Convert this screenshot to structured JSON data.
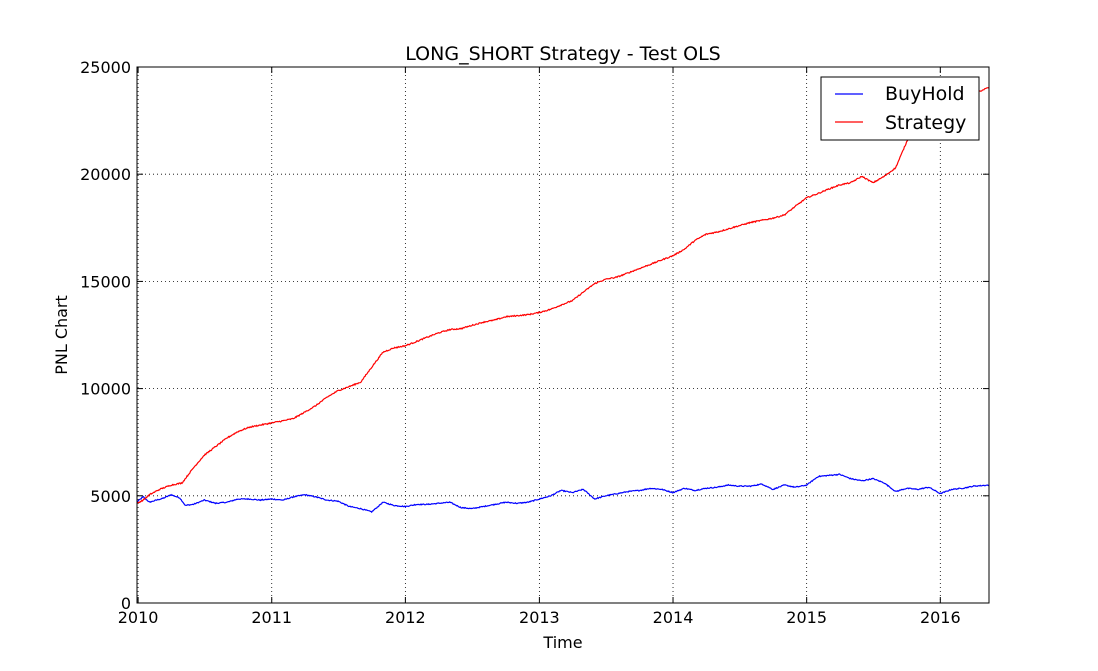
{
  "chart_data": {
    "type": "line",
    "title": "LONG_SHORT Strategy - Test OLS",
    "xlabel": "Time",
    "ylabel": "PNL Chart",
    "xlim": [
      "2009-12-29",
      "2016-05-13"
    ],
    "ylim": [
      0,
      25000
    ],
    "x_ticks": [
      "2010",
      "2011",
      "2012",
      "2013",
      "2014",
      "2015",
      "2016"
    ],
    "y_ticks": [
      "0",
      "5000",
      "10000",
      "15000",
      "20000",
      "25000"
    ],
    "grid": true,
    "legend_position": "top-right",
    "series": [
      {
        "name": "BuyHold",
        "color": "#0000ff",
        "points": [
          [
            "2009-12-29",
            4720
          ],
          [
            "2010-01-15",
            4950
          ],
          [
            "2010-02-01",
            4700
          ],
          [
            "2010-02-20",
            4800
          ],
          [
            "2010-03-10",
            4880
          ],
          [
            "2010-04-01",
            5050
          ],
          [
            "2010-04-25",
            4900
          ],
          [
            "2010-05-10",
            4550
          ],
          [
            "2010-06-01",
            4600
          ],
          [
            "2010-07-01",
            4800
          ],
          [
            "2010-08-01",
            4650
          ],
          [
            "2010-09-01",
            4700
          ],
          [
            "2010-10-01",
            4850
          ],
          [
            "2010-11-01",
            4850
          ],
          [
            "2010-12-01",
            4800
          ],
          [
            "2011-01-01",
            4850
          ],
          [
            "2011-02-01",
            4800
          ],
          [
            "2011-03-01",
            4950
          ],
          [
            "2011-04-01",
            5050
          ],
          [
            "2011-05-01",
            4950
          ],
          [
            "2011-06-01",
            4800
          ],
          [
            "2011-07-01",
            4750
          ],
          [
            "2011-08-01",
            4500
          ],
          [
            "2011-09-01",
            4400
          ],
          [
            "2011-10-01",
            4250
          ],
          [
            "2011-11-01",
            4700
          ],
          [
            "2011-12-01",
            4550
          ],
          [
            "2012-01-01",
            4500
          ],
          [
            "2012-02-01",
            4600
          ],
          [
            "2012-03-01",
            4600
          ],
          [
            "2012-04-01",
            4650
          ],
          [
            "2012-05-01",
            4700
          ],
          [
            "2012-06-01",
            4450
          ],
          [
            "2012-07-01",
            4400
          ],
          [
            "2012-08-01",
            4500
          ],
          [
            "2012-09-01",
            4600
          ],
          [
            "2012-10-01",
            4700
          ],
          [
            "2012-11-01",
            4650
          ],
          [
            "2012-12-01",
            4700
          ],
          [
            "2013-01-01",
            4850
          ],
          [
            "2013-02-01",
            5000
          ],
          [
            "2013-03-01",
            5250
          ],
          [
            "2013-04-01",
            5150
          ],
          [
            "2013-05-01",
            5300
          ],
          [
            "2013-06-01",
            4850
          ],
          [
            "2013-07-01",
            5000
          ],
          [
            "2013-08-01",
            5100
          ],
          [
            "2013-09-01",
            5200
          ],
          [
            "2013-10-01",
            5250
          ],
          [
            "2013-11-01",
            5350
          ],
          [
            "2013-12-01",
            5300
          ],
          [
            "2014-01-01",
            5150
          ],
          [
            "2014-02-01",
            5350
          ],
          [
            "2014-03-01",
            5250
          ],
          [
            "2014-04-01",
            5350
          ],
          [
            "2014-05-01",
            5400
          ],
          [
            "2014-06-01",
            5500
          ],
          [
            "2014-07-01",
            5450
          ],
          [
            "2014-08-01",
            5450
          ],
          [
            "2014-09-01",
            5550
          ],
          [
            "2014-10-01",
            5300
          ],
          [
            "2014-11-01",
            5500
          ],
          [
            "2014-12-01",
            5400
          ],
          [
            "2015-01-01",
            5500
          ],
          [
            "2015-02-01",
            5900
          ],
          [
            "2015-03-01",
            5950
          ],
          [
            "2015-04-01",
            6000
          ],
          [
            "2015-05-01",
            5800
          ],
          [
            "2015-06-01",
            5700
          ],
          [
            "2015-07-01",
            5800
          ],
          [
            "2015-08-01",
            5600
          ],
          [
            "2015-09-01",
            5200
          ],
          [
            "2015-10-01",
            5350
          ],
          [
            "2015-11-01",
            5300
          ],
          [
            "2015-12-01",
            5400
          ],
          [
            "2016-01-01",
            5100
          ],
          [
            "2016-02-01",
            5300
          ],
          [
            "2016-03-01",
            5350
          ],
          [
            "2016-04-01",
            5450
          ],
          [
            "2016-05-13",
            5500
          ]
        ]
      },
      {
        "name": "Strategy",
        "color": "#ff0000",
        "points": [
          [
            "2009-12-29",
            4650
          ],
          [
            "2010-01-15",
            4800
          ],
          [
            "2010-02-01",
            5050
          ],
          [
            "2010-03-01",
            5300
          ],
          [
            "2010-04-01",
            5500
          ],
          [
            "2010-05-01",
            5600
          ],
          [
            "2010-06-01",
            6300
          ],
          [
            "2010-07-01",
            6900
          ],
          [
            "2010-08-01",
            7300
          ],
          [
            "2010-09-01",
            7700
          ],
          [
            "2010-10-01",
            8000
          ],
          [
            "2010-11-01",
            8200
          ],
          [
            "2010-12-01",
            8300
          ],
          [
            "2011-01-01",
            8400
          ],
          [
            "2011-02-01",
            8500
          ],
          [
            "2011-03-01",
            8600
          ],
          [
            "2011-04-01",
            8900
          ],
          [
            "2011-05-01",
            9200
          ],
          [
            "2011-06-01",
            9600
          ],
          [
            "2011-07-01",
            9900
          ],
          [
            "2011-08-01",
            10100
          ],
          [
            "2011-09-01",
            10300
          ],
          [
            "2011-10-01",
            11000
          ],
          [
            "2011-11-01",
            11700
          ],
          [
            "2011-12-01",
            11900
          ],
          [
            "2012-01-01",
            12000
          ],
          [
            "2012-02-01",
            12200
          ],
          [
            "2012-03-01",
            12400
          ],
          [
            "2012-04-01",
            12600
          ],
          [
            "2012-05-01",
            12750
          ],
          [
            "2012-06-01",
            12800
          ],
          [
            "2012-07-01",
            12950
          ],
          [
            "2012-08-01",
            13100
          ],
          [
            "2012-09-01",
            13200
          ],
          [
            "2012-10-01",
            13350
          ],
          [
            "2012-11-01",
            13400
          ],
          [
            "2012-12-01",
            13450
          ],
          [
            "2013-01-01",
            13550
          ],
          [
            "2013-02-01",
            13700
          ],
          [
            "2013-03-01",
            13900
          ],
          [
            "2013-04-01",
            14100
          ],
          [
            "2013-05-01",
            14500
          ],
          [
            "2013-06-01",
            14900
          ],
          [
            "2013-07-01",
            15100
          ],
          [
            "2013-08-01",
            15200
          ],
          [
            "2013-09-01",
            15400
          ],
          [
            "2013-10-01",
            15600
          ],
          [
            "2013-11-01",
            15800
          ],
          [
            "2013-12-01",
            16000
          ],
          [
            "2014-01-01",
            16200
          ],
          [
            "2014-02-01",
            16500
          ],
          [
            "2014-03-01",
            16900
          ],
          [
            "2014-04-01",
            17200
          ],
          [
            "2014-05-01",
            17300
          ],
          [
            "2014-06-01",
            17450
          ],
          [
            "2014-07-01",
            17600
          ],
          [
            "2014-08-01",
            17750
          ],
          [
            "2014-09-01",
            17850
          ],
          [
            "2014-10-01",
            17950
          ],
          [
            "2014-11-01",
            18100
          ],
          [
            "2014-12-01",
            18500
          ],
          [
            "2015-01-01",
            18900
          ],
          [
            "2015-02-01",
            19100
          ],
          [
            "2015-03-01",
            19300
          ],
          [
            "2015-04-01",
            19500
          ],
          [
            "2015-05-01",
            19600
          ],
          [
            "2015-06-01",
            19900
          ],
          [
            "2015-07-01",
            19600
          ],
          [
            "2015-08-01",
            19900
          ],
          [
            "2015-09-01",
            20300
          ],
          [
            "2015-10-01",
            21500
          ],
          [
            "2015-11-01",
            22700
          ],
          [
            "2015-12-01",
            23400
          ],
          [
            "2016-01-01",
            23600
          ],
          [
            "2016-02-01",
            23700
          ],
          [
            "2016-03-01",
            23800
          ],
          [
            "2016-04-01",
            23750
          ],
          [
            "2016-05-13",
            24050
          ]
        ]
      }
    ]
  }
}
